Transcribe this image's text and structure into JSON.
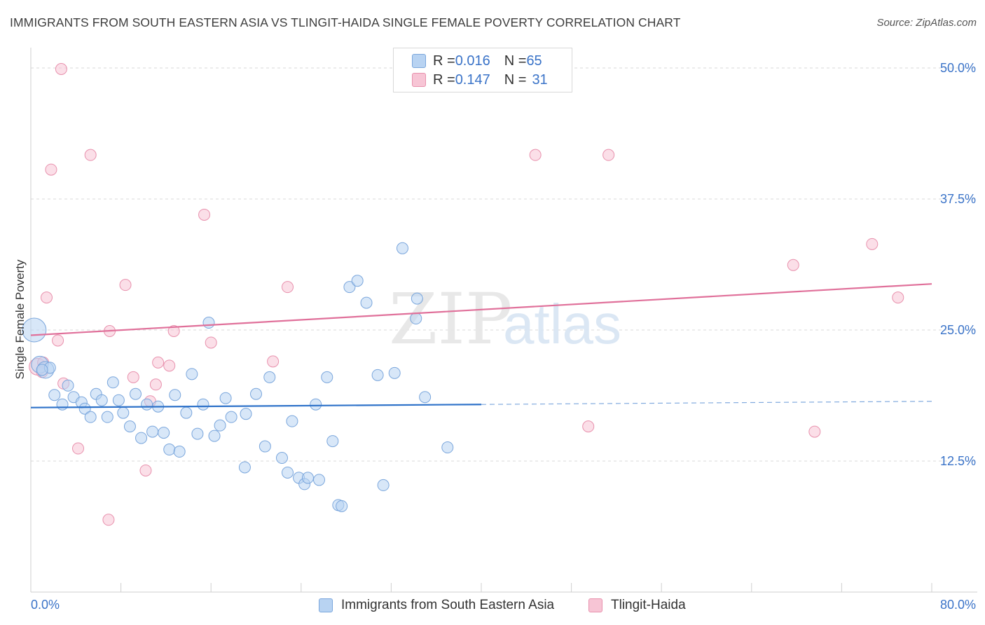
{
  "title": "IMMIGRANTS FROM SOUTH EASTERN ASIA VS TLINGIT-HAIDA SINGLE FEMALE POVERTY CORRELATION CHART",
  "source": "Source: ZipAtlas.com",
  "watermark": {
    "zip": "ZIP",
    "atlas": "atlas"
  },
  "colors": {
    "blue_fill": "#b8d3f2",
    "blue_stroke": "#7aa6dc",
    "blue_line": "#2e72c9",
    "pink_fill": "#f7c5d5",
    "pink_stroke": "#e891ad",
    "pink_line": "#e0709a",
    "tick_label": "#3a73c8",
    "grid": "#d9d9d9"
  },
  "legend": {
    "rows": [
      {
        "r_label": "R = ",
        "r_value": "0.016",
        "n_label": "N = ",
        "n_value": "65"
      },
      {
        "r_label": "R = ",
        "r_value": "0.147",
        "n_label": "N = ",
        "n_value": "31"
      }
    ]
  },
  "bottom_legend": [
    "Immigrants from South Eastern Asia",
    "Tlingit-Haida"
  ],
  "chart_data": {
    "type": "scatter",
    "title": "IMMIGRANTS FROM SOUTH EASTERN ASIA VS TLINGIT-HAIDA SINGLE FEMALE POVERTY CORRELATION CHART",
    "xlabel": "",
    "ylabel": "Single Female Poverty",
    "xlim": [
      0,
      80
    ],
    "ylim": [
      0,
      50
    ],
    "x_tick_labels": [
      "0.0%",
      "80.0%"
    ],
    "y_ticks": [
      12.5,
      25.0,
      37.5,
      50.0
    ],
    "y_tick_labels": [
      "12.5%",
      "25.0%",
      "37.5%",
      "50.0%"
    ],
    "grid": true,
    "legend_position": "top-center",
    "series": [
      {
        "name": "Immigrants from South Eastern Asia",
        "color": "#b8d3f2",
        "trend": {
          "x": [
            0,
            40,
            80
          ],
          "y": [
            17.6,
            17.9,
            18.2
          ],
          "solid_until": 40
        },
        "points": [
          {
            "x": 0.3,
            "y": 25.0,
            "s": 3
          },
          {
            "x": 0.8,
            "y": 21.7,
            "s": 2
          },
          {
            "x": 1.3,
            "y": 21.2,
            "s": 2
          },
          {
            "x": 1.7,
            "y": 21.4,
            "s": 1
          },
          {
            "x": 2.1,
            "y": 18.8,
            "s": 1
          },
          {
            "x": 2.8,
            "y": 17.9,
            "s": 1
          },
          {
            "x": 3.3,
            "y": 19.7,
            "s": 1
          },
          {
            "x": 3.8,
            "y": 18.6,
            "s": 1
          },
          {
            "x": 4.5,
            "y": 18.1,
            "s": 1
          },
          {
            "x": 4.8,
            "y": 17.5,
            "s": 1
          },
          {
            "x": 5.3,
            "y": 16.7,
            "s": 1
          },
          {
            "x": 5.8,
            "y": 18.9,
            "s": 1
          },
          {
            "x": 6.3,
            "y": 18.3,
            "s": 1
          },
          {
            "x": 6.8,
            "y": 16.7,
            "s": 1
          },
          {
            "x": 7.3,
            "y": 20.0,
            "s": 1
          },
          {
            "x": 7.8,
            "y": 18.3,
            "s": 1
          },
          {
            "x": 8.2,
            "y": 17.1,
            "s": 1
          },
          {
            "x": 8.8,
            "y": 15.8,
            "s": 1
          },
          {
            "x": 9.3,
            "y": 18.9,
            "s": 1
          },
          {
            "x": 9.8,
            "y": 14.7,
            "s": 1
          },
          {
            "x": 10.3,
            "y": 17.9,
            "s": 1
          },
          {
            "x": 10.8,
            "y": 15.3,
            "s": 1
          },
          {
            "x": 11.3,
            "y": 17.7,
            "s": 1
          },
          {
            "x": 11.8,
            "y": 15.2,
            "s": 1
          },
          {
            "x": 12.3,
            "y": 13.6,
            "s": 1
          },
          {
            "x": 12.8,
            "y": 18.8,
            "s": 1
          },
          {
            "x": 13.2,
            "y": 13.4,
            "s": 1
          },
          {
            "x": 13.8,
            "y": 17.1,
            "s": 1
          },
          {
            "x": 14.3,
            "y": 20.8,
            "s": 1
          },
          {
            "x": 14.8,
            "y": 15.1,
            "s": 1
          },
          {
            "x": 15.3,
            "y": 17.9,
            "s": 1
          },
          {
            "x": 15.8,
            "y": 25.7,
            "s": 1
          },
          {
            "x": 16.3,
            "y": 14.9,
            "s": 1
          },
          {
            "x": 16.8,
            "y": 15.9,
            "s": 1
          },
          {
            "x": 17.3,
            "y": 18.5,
            "s": 1
          },
          {
            "x": 17.8,
            "y": 16.7,
            "s": 1
          },
          {
            "x": 19.1,
            "y": 17.0,
            "s": 1
          },
          {
            "x": 19.0,
            "y": 11.9,
            "s": 1
          },
          {
            "x": 20.0,
            "y": 18.9,
            "s": 1
          },
          {
            "x": 20.8,
            "y": 13.9,
            "s": 1
          },
          {
            "x": 21.2,
            "y": 20.5,
            "s": 1
          },
          {
            "x": 22.3,
            "y": 12.8,
            "s": 1
          },
          {
            "x": 22.8,
            "y": 11.4,
            "s": 1
          },
          {
            "x": 23.2,
            "y": 16.3,
            "s": 1
          },
          {
            "x": 23.8,
            "y": 10.9,
            "s": 1
          },
          {
            "x": 24.3,
            "y": 10.3,
            "s": 1
          },
          {
            "x": 24.6,
            "y": 10.9,
            "s": 1
          },
          {
            "x": 25.3,
            "y": 17.9,
            "s": 1
          },
          {
            "x": 25.6,
            "y": 10.7,
            "s": 1
          },
          {
            "x": 26.3,
            "y": 20.5,
            "s": 1
          },
          {
            "x": 26.8,
            "y": 14.4,
            "s": 1
          },
          {
            "x": 27.3,
            "y": 8.3,
            "s": 1
          },
          {
            "x": 27.6,
            "y": 8.2,
            "s": 1
          },
          {
            "x": 28.3,
            "y": 29.1,
            "s": 1
          },
          {
            "x": 29.0,
            "y": 29.7,
            "s": 1
          },
          {
            "x": 29.8,
            "y": 27.6,
            "s": 1
          },
          {
            "x": 30.8,
            "y": 20.7,
            "s": 1
          },
          {
            "x": 31.3,
            "y": 10.2,
            "s": 1
          },
          {
            "x": 32.3,
            "y": 20.9,
            "s": 1
          },
          {
            "x": 33.0,
            "y": 32.8,
            "s": 1
          },
          {
            "x": 34.3,
            "y": 28.0,
            "s": 1
          },
          {
            "x": 34.2,
            "y": 26.1,
            "s": 1
          },
          {
            "x": 35.0,
            "y": 18.6,
            "s": 1
          },
          {
            "x": 37.0,
            "y": 13.8,
            "s": 1
          },
          {
            "x": 1.0,
            "y": 21.2,
            "s": 1
          }
        ]
      },
      {
        "name": "Tlingit-Haida",
        "color": "#f7c5d5",
        "trend": {
          "x": [
            0,
            80
          ],
          "y": [
            24.5,
            29.4
          ]
        },
        "points": [
          {
            "x": 0.6,
            "y": 21.5,
            "s": 2
          },
          {
            "x": 1.1,
            "y": 21.9,
            "s": 1
          },
          {
            "x": 1.4,
            "y": 28.1,
            "s": 1
          },
          {
            "x": 1.8,
            "y": 40.3,
            "s": 1
          },
          {
            "x": 2.4,
            "y": 24.0,
            "s": 1
          },
          {
            "x": 2.7,
            "y": 49.9,
            "s": 1
          },
          {
            "x": 2.9,
            "y": 19.9,
            "s": 1
          },
          {
            "x": 4.2,
            "y": 13.7,
            "s": 1
          },
          {
            "x": 5.3,
            "y": 41.7,
            "s": 1
          },
          {
            "x": 6.9,
            "y": 6.9,
            "s": 1
          },
          {
            "x": 7.0,
            "y": 24.9,
            "s": 1
          },
          {
            "x": 8.4,
            "y": 29.3,
            "s": 1
          },
          {
            "x": 9.1,
            "y": 20.5,
            "s": 1
          },
          {
            "x": 10.2,
            "y": 11.6,
            "s": 1
          },
          {
            "x": 10.6,
            "y": 18.2,
            "s": 1
          },
          {
            "x": 11.1,
            "y": 19.8,
            "s": 1
          },
          {
            "x": 11.3,
            "y": 21.9,
            "s": 1
          },
          {
            "x": 12.3,
            "y": 21.6,
            "s": 1
          },
          {
            "x": 12.7,
            "y": 24.9,
            "s": 1
          },
          {
            "x": 15.4,
            "y": 36.0,
            "s": 1
          },
          {
            "x": 16.0,
            "y": 23.8,
            "s": 1
          },
          {
            "x": 21.5,
            "y": 22.0,
            "s": 1
          },
          {
            "x": 22.8,
            "y": 29.1,
            "s": 1
          },
          {
            "x": 44.8,
            "y": 41.7,
            "s": 1
          },
          {
            "x": 49.5,
            "y": 15.8,
            "s": 1
          },
          {
            "x": 51.3,
            "y": 41.7,
            "s": 1
          },
          {
            "x": 67.7,
            "y": 31.2,
            "s": 1
          },
          {
            "x": 69.6,
            "y": 15.3,
            "s": 1
          },
          {
            "x": 74.7,
            "y": 33.2,
            "s": 1
          },
          {
            "x": 77.0,
            "y": 28.1,
            "s": 1
          },
          {
            "x": 1.0,
            "y": 21.0,
            "s": 1
          }
        ]
      }
    ]
  }
}
